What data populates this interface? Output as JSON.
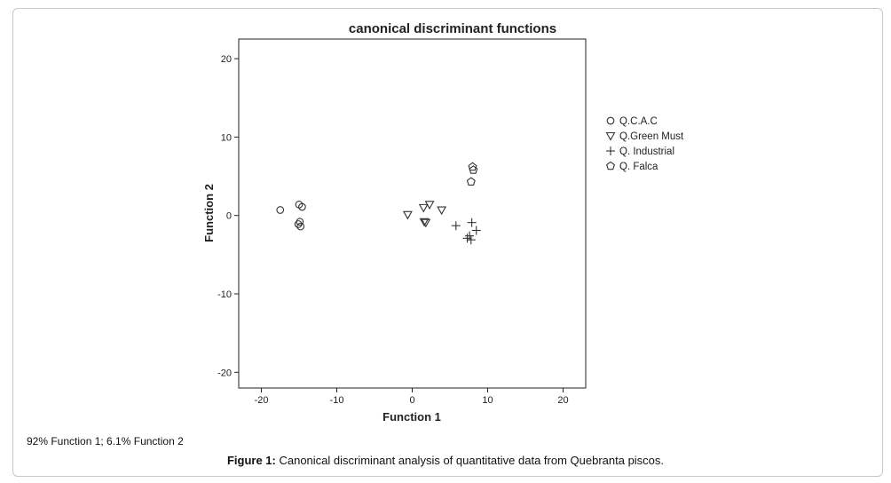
{
  "figure": {
    "caption_label": "Figure 1:",
    "caption_text": " Canonical discriminant analysis of quantitative data from Quebranta piscos.",
    "note": "92% Function 1; 6.1% Function 2"
  },
  "chart_data": {
    "type": "scatter",
    "title": "canonical discriminant functions",
    "xlabel": "Function 1",
    "ylabel": "Function 2",
    "xlim": [
      -23,
      23
    ],
    "ylim": [
      -22,
      22.5
    ],
    "xticks": [
      -20,
      -10,
      0,
      10,
      20
    ],
    "yticks": [
      -20,
      -10,
      0,
      10,
      20
    ],
    "legend_position": "right",
    "series": [
      {
        "name": "Q.C.A.C",
        "marker": "circle",
        "points": [
          [
            -17.5,
            0.7
          ],
          [
            -15,
            1.4
          ],
          [
            -14.6,
            1.1
          ],
          [
            -14.9,
            -0.8
          ],
          [
            -15.1,
            -1.1
          ],
          [
            -14.8,
            -1.4
          ]
        ]
      },
      {
        "name": "Q.Green Must",
        "marker": "triangle-down",
        "points": [
          [
            -0.6,
            0.1
          ],
          [
            1.5,
            1.0
          ],
          [
            2.3,
            1.4
          ],
          [
            3.9,
            0.7
          ],
          [
            1.6,
            -0.8
          ],
          [
            1.8,
            -0.9
          ]
        ]
      },
      {
        "name": "Q. Industrial",
        "marker": "plus",
        "points": [
          [
            5.8,
            -1.3
          ],
          [
            7.9,
            -0.9
          ],
          [
            8.5,
            -1.9
          ],
          [
            7.6,
            -2.6
          ],
          [
            7.3,
            -2.9
          ],
          [
            7.8,
            -3.1
          ]
        ]
      },
      {
        "name": "Q. Falca",
        "marker": "pentagon",
        "points": [
          [
            7.8,
            4.3
          ],
          [
            8.0,
            6.2
          ],
          [
            8.1,
            5.8
          ]
        ]
      }
    ]
  }
}
